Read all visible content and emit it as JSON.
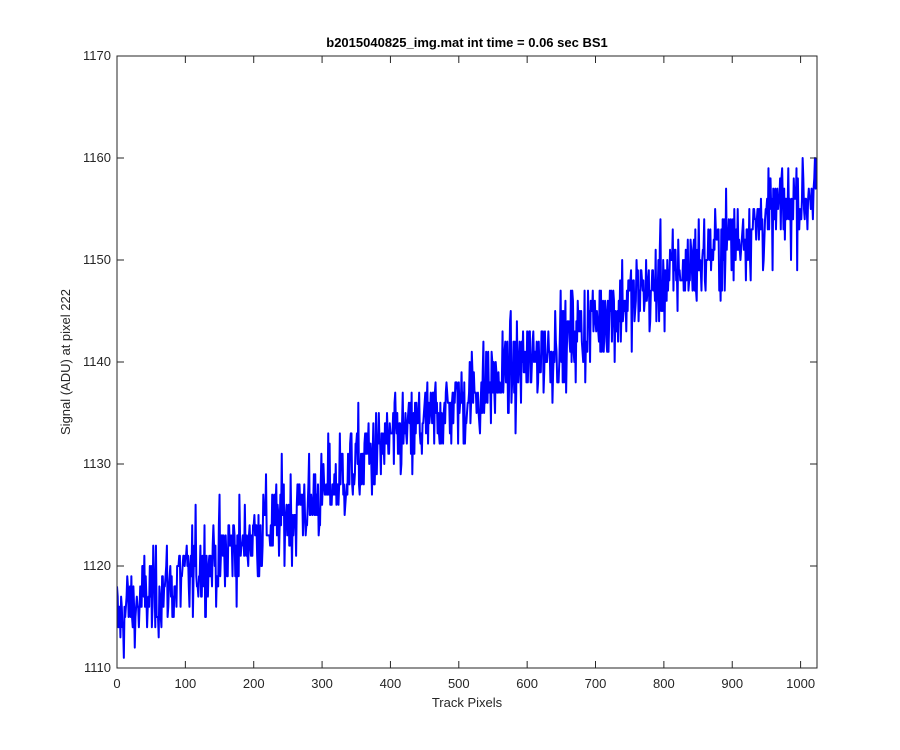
{
  "chart_data": {
    "type": "line",
    "title": "b2015040825_img.mat int time = 0.06 sec   BS1",
    "xlabel": "Track Pixels",
    "ylabel": "Signal (ADU) at pixel 222",
    "xlim": [
      0,
      1024
    ],
    "ylim": [
      1110,
      1170
    ],
    "x_ticks": [
      0,
      100,
      200,
      300,
      400,
      500,
      600,
      700,
      800,
      900,
      1000
    ],
    "y_ticks": [
      1110,
      1120,
      1130,
      1140,
      1150,
      1160,
      1170
    ],
    "grid": false,
    "series": [
      {
        "color": "#0000ff",
        "line_width": 2,
        "trend": {
          "start_value": 1115.5,
          "slope_per_pixel": 0.0405
        },
        "sample_x": [
          0,
          50,
          100,
          150,
          200,
          250,
          300,
          350,
          400,
          450,
          500,
          550,
          600,
          650,
          700,
          750,
          800,
          850,
          900,
          950,
          1000,
          1023
        ],
        "sample_y": [
          1115,
          1117,
          1119,
          1121,
          1123,
          1125,
          1127,
          1130,
          1132,
          1134,
          1136,
          1138,
          1140,
          1142,
          1144,
          1146,
          1148,
          1150,
          1152,
          1154,
          1156,
          1157
        ],
        "noise_amplitude": 4
      }
    ]
  }
}
